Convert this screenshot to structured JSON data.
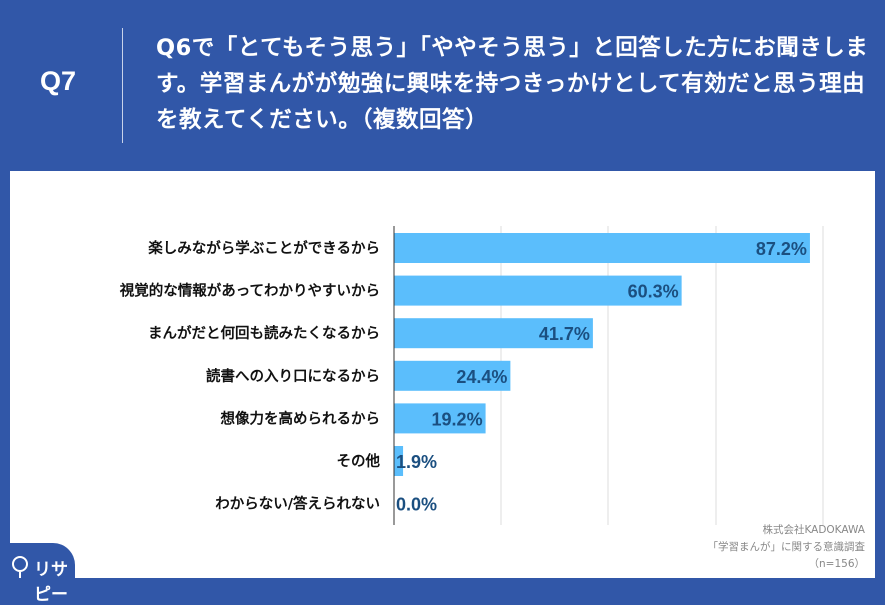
{
  "header": {
    "qnum": "Q7",
    "question": "Q6で「とてもそう思う」「ややそう思う」と回答した方にお聞きします。学習まんがが勉強に興味を持つきっかけとして有効だと思う理由を教えてください。（複数回答）"
  },
  "chart_data": {
    "type": "bar",
    "orientation": "horizontal",
    "categories": [
      "楽しみながら学ぶことができるから",
      "視覚的な情報があってわかりやすいから",
      "まんがだと何回も読みたくなるから",
      "読書への入り口になるから",
      "想像力を高められるから",
      "その他",
      "わからない/答えられない"
    ],
    "values": [
      87.2,
      60.3,
      41.7,
      24.4,
      19.2,
      1.9,
      0.0
    ],
    "labels": [
      "87.2%",
      "60.3%",
      "41.7%",
      "24.4%",
      "19.2%",
      "1.9%",
      "0.0%"
    ],
    "xlim": [
      0,
      100
    ],
    "grid": true,
    "colors": {
      "bar": "#5bbefc",
      "label": "#1b4f80"
    }
  },
  "source": {
    "line1": "株式会社KADOKAWA",
    "line2": "「学習まんが」に関する意識調査",
    "line3": "（n=156）"
  },
  "logo": {
    "text": "リサピー"
  }
}
